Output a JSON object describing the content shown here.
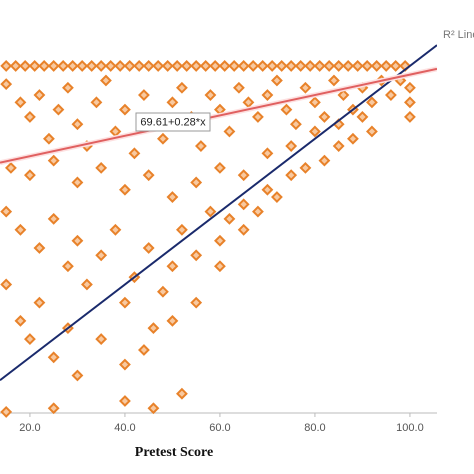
{
  "chart_data": {
    "type": "scatter",
    "x_label": "Pretest Score",
    "legend_text": "R² Line",
    "fit_label": "69.61+0.28*x",
    "fit_line": {
      "intercept": 69.61,
      "slope": 0.28,
      "color": "#e06060"
    },
    "reference_line": {
      "intercept": 0,
      "slope": 1,
      "color": "#1a2a6c"
    },
    "xlim": [
      13.7,
      105.7
    ],
    "ylim": [
      4.7,
      118.1
    ],
    "xticks": [
      {
        "value": 20,
        "label": "20.0"
      },
      {
        "value": 40,
        "label": "40.0"
      },
      {
        "value": 60,
        "label": "60.0"
      },
      {
        "value": 80,
        "label": "80.0"
      },
      {
        "value": 100,
        "label": "100.0"
      }
    ],
    "series": [
      {
        "color": "#e8822a",
        "x": [
          15,
          17,
          19,
          21,
          23,
          25,
          27,
          29,
          31,
          33,
          35,
          37,
          39,
          41,
          43,
          45,
          47,
          49,
          51,
          53,
          55,
          57,
          59,
          61,
          63,
          65,
          67,
          69,
          71,
          73,
          75,
          77,
          79,
          81,
          83,
          85,
          87,
          89,
          91,
          93,
          95,
          97,
          99,
          15,
          18,
          20,
          22,
          24,
          26,
          28,
          30,
          32,
          34,
          36,
          38,
          40,
          42,
          44,
          46,
          48,
          50,
          52,
          54,
          56,
          58,
          60,
          62,
          64,
          66,
          68,
          70,
          72,
          74,
          76,
          78,
          80,
          82,
          84,
          86,
          88,
          90,
          92,
          94,
          96,
          98,
          100,
          100,
          100,
          16,
          20,
          25,
          30,
          35,
          40,
          45,
          50,
          55,
          60,
          65,
          70,
          75,
          80,
          85,
          90,
          15,
          18,
          22,
          25,
          28,
          30,
          32,
          35,
          38,
          40,
          42,
          45,
          48,
          50,
          52,
          55,
          58,
          60,
          62,
          65,
          68,
          70,
          72,
          75,
          78,
          82,
          88,
          15,
          18,
          20,
          22,
          25,
          28,
          30,
          35,
          40,
          44,
          46,
          50,
          55,
          40,
          46,
          25,
          52,
          15,
          60,
          65,
          85,
          92
        ],
        "y": [
          100,
          100,
          100,
          100,
          100,
          100,
          100,
          100,
          100,
          100,
          100,
          100,
          100,
          100,
          100,
          100,
          100,
          100,
          100,
          100,
          100,
          100,
          100,
          100,
          100,
          100,
          100,
          100,
          100,
          100,
          100,
          100,
          100,
          100,
          100,
          100,
          100,
          100,
          100,
          100,
          100,
          100,
          100,
          95,
          90,
          86,
          92,
          80,
          88,
          94,
          84,
          78,
          90,
          96,
          82,
          88,
          76,
          92,
          84,
          80,
          90,
          94,
          86,
          78,
          92,
          88,
          82,
          94,
          90,
          86,
          92,
          96,
          88,
          84,
          94,
          90,
          86,
          96,
          92,
          88,
          94,
          90,
          96,
          92,
          96,
          94,
          90,
          86,
          72,
          70,
          74,
          68,
          72,
          66,
          70,
          64,
          68,
          72,
          70,
          76,
          78,
          82,
          84,
          86,
          60,
          55,
          50,
          58,
          45,
          52,
          40,
          48,
          55,
          35,
          42,
          50,
          38,
          45,
          55,
          48,
          60,
          52,
          58,
          62,
          60,
          66,
          64,
          70,
          72,
          74,
          80,
          40,
          30,
          25,
          35,
          20,
          28,
          15,
          25,
          18,
          22,
          28,
          30,
          35,
          8,
          6,
          6,
          10,
          5,
          45,
          55,
          78,
          82
        ]
      }
    ]
  }
}
